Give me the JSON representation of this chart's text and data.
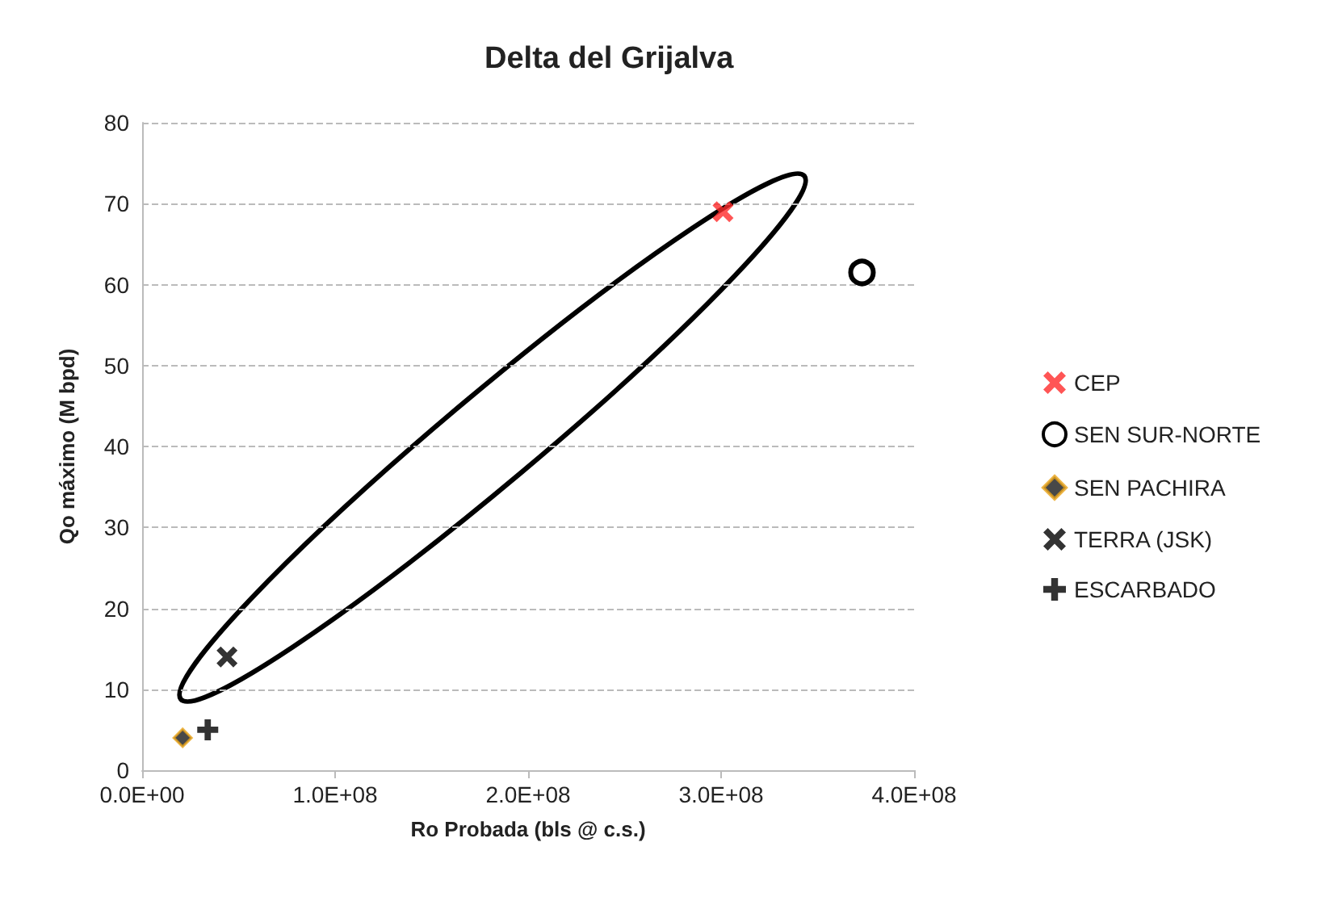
{
  "chart_data": {
    "type": "scatter",
    "title": "Delta del Grijalva",
    "xlabel": "Ro Probada (bls @ c.s.)",
    "ylabel": "Qo máximo (M bpd)",
    "xlim": [
      0,
      400000000
    ],
    "xticks": [
      {
        "value": 0,
        "label": "0.0E+00"
      },
      {
        "value": 100000000,
        "label": "1.0E+08"
      },
      {
        "value": 200000000,
        "label": "2.0E+08"
      },
      {
        "value": 300000000,
        "label": "3.0E+08"
      },
      {
        "value": 400000000,
        "label": "4.0E+08"
      }
    ],
    "ylim": [
      0,
      80
    ],
    "yticks": [
      0,
      10,
      20,
      30,
      40,
      50,
      60,
      70,
      80
    ],
    "grid": "y",
    "legend": "right",
    "series": [
      {
        "name": "CEP",
        "color": "#ff2a2a",
        "marker": "x",
        "x": [
          301000000
        ],
        "values": [
          69
        ]
      },
      {
        "name": "SEN SUR-NORTE",
        "color": "#000000",
        "marker": "circle",
        "x": [
          373000000
        ],
        "values": [
          61.5
        ]
      },
      {
        "name": "SEN PACHIRA",
        "color": "#1a1a1a",
        "marker": "diamond",
        "x": [
          21000000
        ],
        "values": [
          4
        ]
      },
      {
        "name": "TERRA (JSK)",
        "color": "#000000",
        "marker": "x",
        "x": [
          44000000
        ],
        "values": [
          14
        ]
      },
      {
        "name": "ESCARBADO",
        "color": "#000000",
        "marker": "cross",
        "x": [
          34000000
        ],
        "values": [
          5
        ]
      }
    ]
  }
}
